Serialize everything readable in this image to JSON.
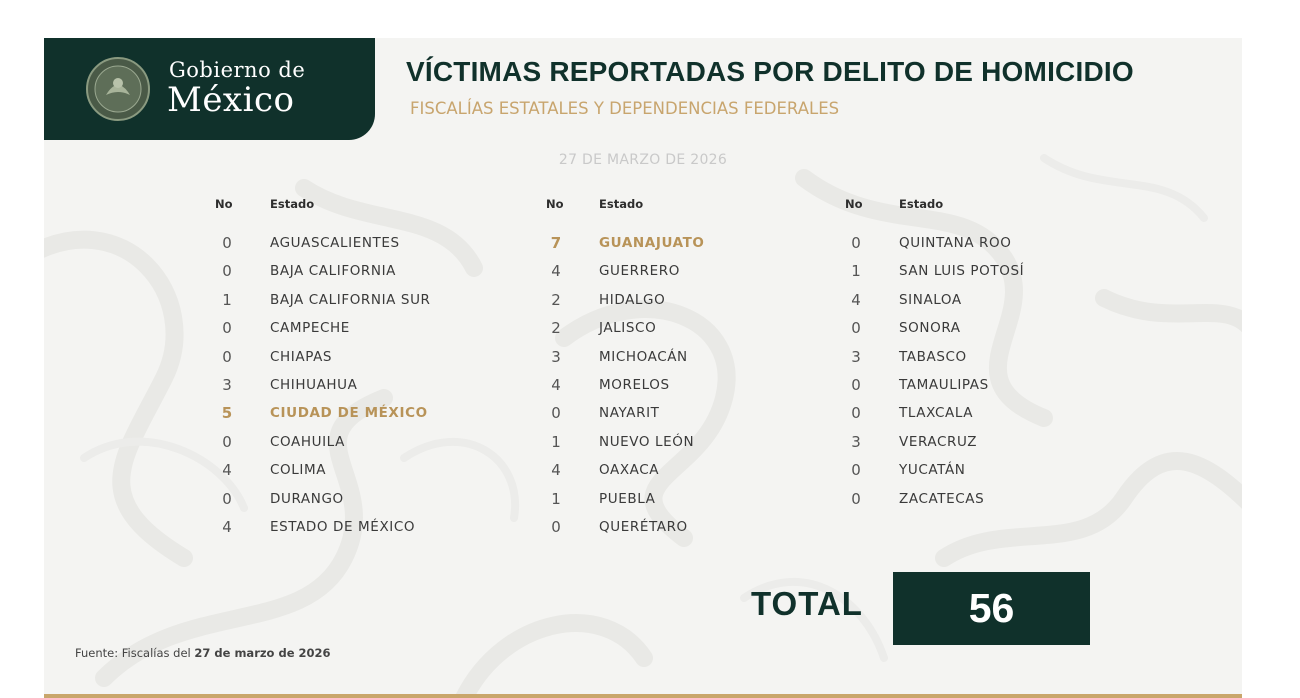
{
  "header": {
    "logo_line1": "Gobierno de",
    "logo_line2": "México",
    "title": "VÍCTIMAS REPORTADAS POR DELITO DE HOMICIDIO",
    "subtitle": "FISCALÍAS ESTATALES Y DEPENDENCIAS FEDERALES"
  },
  "date": "27 DE MARZO DE 2026",
  "columns": [
    {
      "no_header": "No",
      "state_header": "Estado",
      "rows": [
        {
          "no": "0",
          "state": "AGUASCALIENTES",
          "highlight": false
        },
        {
          "no": "0",
          "state": "BAJA CALIFORNIA",
          "highlight": false
        },
        {
          "no": "1",
          "state": "BAJA CALIFORNIA SUR",
          "highlight": false
        },
        {
          "no": "0",
          "state": "CAMPECHE",
          "highlight": false
        },
        {
          "no": "0",
          "state": "CHIAPAS",
          "highlight": false
        },
        {
          "no": "3",
          "state": "CHIHUAHUA",
          "highlight": false
        },
        {
          "no": "5",
          "state": "CIUDAD DE MÉXICO",
          "highlight": true
        },
        {
          "no": "0",
          "state": "COAHUILA",
          "highlight": false
        },
        {
          "no": "4",
          "state": "COLIMA",
          "highlight": false
        },
        {
          "no": "0",
          "state": "DURANGO",
          "highlight": false
        },
        {
          "no": "4",
          "state": "ESTADO DE MÉXICO",
          "highlight": false
        }
      ]
    },
    {
      "no_header": "No",
      "state_header": "Estado",
      "rows": [
        {
          "no": "7",
          "state": "GUANAJUATO",
          "highlight": true
        },
        {
          "no": "4",
          "state": "GUERRERO",
          "highlight": false
        },
        {
          "no": "2",
          "state": "HIDALGO",
          "highlight": false
        },
        {
          "no": "2",
          "state": "JALISCO",
          "highlight": false
        },
        {
          "no": "3",
          "state": "MICHOACÁN",
          "highlight": false
        },
        {
          "no": "4",
          "state": "MORELOS",
          "highlight": false
        },
        {
          "no": "0",
          "state": "NAYARIT",
          "highlight": false
        },
        {
          "no": "1",
          "state": "NUEVO LEÓN",
          "highlight": false
        },
        {
          "no": "4",
          "state": "OAXACA",
          "highlight": false
        },
        {
          "no": "1",
          "state": "PUEBLA",
          "highlight": false
        },
        {
          "no": "0",
          "state": "QUERÉTARO",
          "highlight": false
        }
      ]
    },
    {
      "no_header": "No",
      "state_header": "Estado",
      "rows": [
        {
          "no": "0",
          "state": "QUINTANA ROO",
          "highlight": false
        },
        {
          "no": "1",
          "state": "SAN LUIS POTOSÍ",
          "highlight": false
        },
        {
          "no": "4",
          "state": "SINALOA",
          "highlight": false
        },
        {
          "no": "0",
          "state": "SONORA",
          "highlight": false
        },
        {
          "no": "3",
          "state": "TABASCO",
          "highlight": false
        },
        {
          "no": "0",
          "state": "TAMAULIPAS",
          "highlight": false
        },
        {
          "no": "0",
          "state": "TLAXCALA",
          "highlight": false
        },
        {
          "no": "3",
          "state": "VERACRUZ",
          "highlight": false
        },
        {
          "no": "0",
          "state": "YUCATÁN",
          "highlight": false
        },
        {
          "no": "0",
          "state": "ZACATECAS",
          "highlight": false
        }
      ]
    }
  ],
  "total": {
    "label": "TOTAL",
    "value": "56"
  },
  "source": {
    "prefix": "Fuente: Fiscalías del ",
    "date": "27 de marzo de 2026"
  },
  "colors": {
    "brand_green": "#10312b",
    "gold": "#c8a56e",
    "highlight": "#b89358",
    "background": "#f4f4f2"
  },
  "icons": {
    "seal": "coat-of-arms-seal-icon"
  }
}
